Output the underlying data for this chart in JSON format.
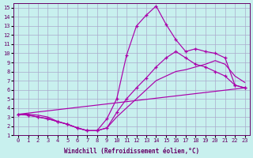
{
  "bg_color": "#c8f0ee",
  "grid_color": "#aaaacc",
  "line_color": "#aa00aa",
  "xlabel": "Windchill (Refroidissement éolien,°C)",
  "xlim": [
    -0.5,
    23.5
  ],
  "ylim": [
    1,
    15.5
  ],
  "xticks": [
    0,
    1,
    2,
    3,
    4,
    5,
    6,
    7,
    8,
    9,
    10,
    11,
    12,
    13,
    14,
    15,
    16,
    17,
    18,
    19,
    20,
    21,
    22,
    23
  ],
  "yticks": [
    1,
    2,
    3,
    4,
    5,
    6,
    7,
    8,
    9,
    10,
    11,
    12,
    13,
    14,
    15
  ],
  "curve1_x": [
    0,
    1,
    2,
    3,
    4,
    5,
    6,
    7,
    8,
    9,
    10,
    11,
    12,
    13,
    14,
    15,
    16,
    17,
    18,
    19,
    20,
    21,
    22,
    23
  ],
  "curve1_y": [
    3.3,
    3.2,
    3.0,
    2.8,
    2.5,
    2.2,
    1.8,
    1.5,
    1.5,
    2.8,
    5.0,
    9.8,
    13.0,
    14.2,
    15.2,
    13.2,
    11.5,
    10.2,
    10.5,
    10.2,
    10.0,
    9.5,
    6.5,
    6.2
  ],
  "curve2_x": [
    0,
    1,
    2,
    3,
    4,
    5,
    6,
    7,
    8,
    9,
    10,
    11,
    12,
    13,
    14,
    15,
    16,
    17,
    18,
    19,
    20,
    21,
    22,
    23
  ],
  "curve2_y": [
    3.3,
    3.2,
    3.0,
    2.8,
    2.5,
    2.2,
    1.8,
    1.5,
    1.5,
    1.8,
    3.5,
    5.0,
    6.2,
    7.3,
    8.5,
    9.5,
    10.2,
    9.5,
    8.8,
    8.5,
    8.0,
    7.5,
    6.5,
    6.2
  ],
  "curve3_x": [
    0,
    1,
    2,
    3,
    4,
    5,
    6,
    7,
    8,
    9,
    10,
    11,
    12,
    13,
    14,
    15,
    16,
    17,
    18,
    19,
    20,
    21,
    22,
    23
  ],
  "curve3_y": [
    3.3,
    3.3,
    3.2,
    3.0,
    2.5,
    2.2,
    1.8,
    1.5,
    1.5,
    1.8,
    3.0,
    4.0,
    5.0,
    6.0,
    7.0,
    7.5,
    8.0,
    8.2,
    8.5,
    8.8,
    9.2,
    8.8,
    7.5,
    6.8
  ],
  "curve4_x": [
    0,
    23
  ],
  "curve4_y": [
    3.3,
    6.2
  ]
}
